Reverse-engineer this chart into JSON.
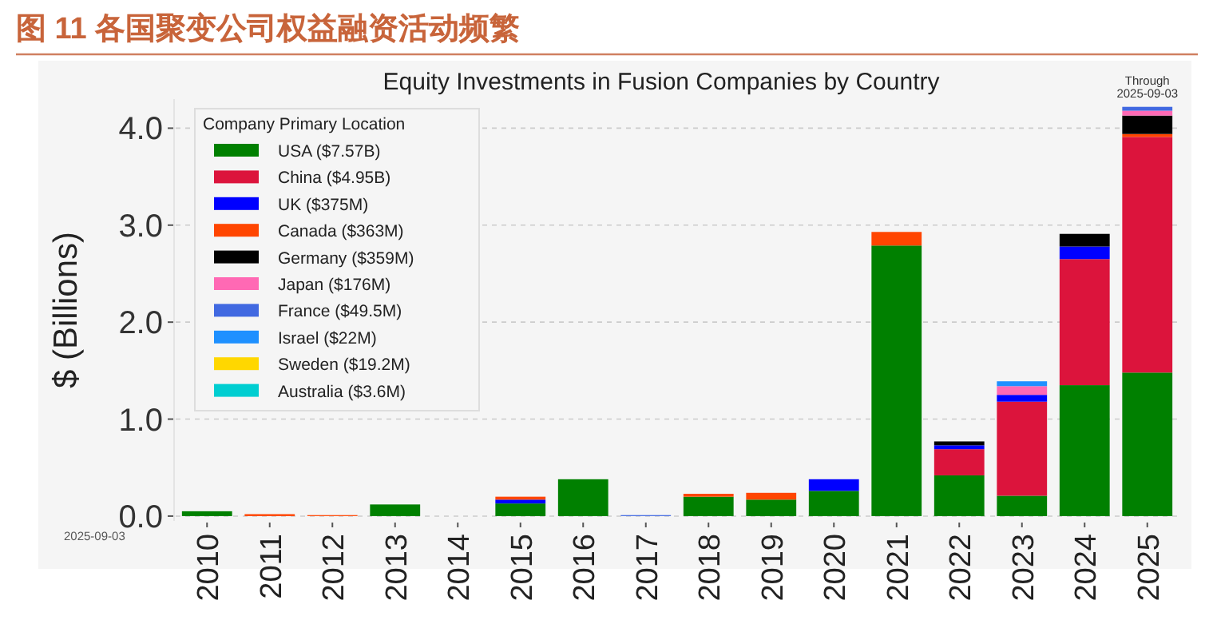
{
  "chart_data": {
    "type": "bar",
    "stacked": true,
    "title": "图 11 各国聚变公司权益融资活动频繁",
    "subtitle": "Equity Investments in Fusion Companies by Country",
    "ylabel": "$ (Billions)",
    "legend_title": "Company Primary Location",
    "categories": [
      "2010",
      "2011",
      "2012",
      "2013",
      "2014",
      "2015",
      "2016",
      "2017",
      "2018",
      "2019",
      "2020",
      "2021",
      "2022",
      "2023",
      "2024",
      "2025"
    ],
    "series": [
      {
        "name": "USA ($7.57B)",
        "color": "#008000",
        "values": [
          0.05,
          null,
          null,
          0.12,
          null,
          0.13,
          0.38,
          null,
          0.2,
          0.17,
          0.26,
          2.79,
          0.42,
          0.21,
          1.35,
          1.48
        ]
      },
      {
        "name": "China ($4.95B)",
        "color": "#dc143c",
        "values": [
          null,
          null,
          null,
          null,
          null,
          null,
          null,
          null,
          null,
          null,
          null,
          null,
          0.27,
          0.97,
          1.3,
          2.43
        ]
      },
      {
        "name": "UK ($375M)",
        "color": "#0000ff",
        "values": [
          null,
          null,
          null,
          null,
          null,
          0.04,
          null,
          null,
          null,
          null,
          0.12,
          null,
          0.04,
          0.07,
          0.13,
          null
        ]
      },
      {
        "name": "Canada ($363M)",
        "color": "#ff4500",
        "values": [
          null,
          0.02,
          0.01,
          null,
          null,
          0.03,
          null,
          null,
          0.03,
          0.07,
          null,
          0.14,
          null,
          null,
          null,
          0.03
        ]
      },
      {
        "name": "Germany ($359M)",
        "color": "#000000",
        "values": [
          null,
          null,
          null,
          null,
          null,
          null,
          null,
          null,
          null,
          null,
          null,
          null,
          0.04,
          null,
          0.13,
          0.19
        ]
      },
      {
        "name": "Japan ($176M)",
        "color": "#ff69b4",
        "values": [
          null,
          null,
          null,
          null,
          null,
          null,
          null,
          null,
          null,
          null,
          null,
          null,
          null,
          0.09,
          null,
          0.05
        ]
      },
      {
        "name": "France ($49.5M)",
        "color": "#4169e1",
        "values": [
          null,
          null,
          null,
          null,
          null,
          null,
          null,
          0.01,
          null,
          null,
          null,
          null,
          null,
          null,
          null,
          0.04
        ]
      },
      {
        "name": "Israel ($22M)",
        "color": "#1e90ff",
        "values": [
          null,
          null,
          null,
          null,
          null,
          null,
          null,
          null,
          null,
          null,
          null,
          null,
          null,
          0.05,
          null,
          null
        ]
      },
      {
        "name": "Sweden ($19.2M)",
        "color": "#ffd700",
        "values": [
          null,
          null,
          null,
          null,
          null,
          null,
          null,
          null,
          null,
          null,
          null,
          null,
          null,
          null,
          null,
          null
        ]
      },
      {
        "name": "Australia ($3.6M)",
        "color": "#00ced1",
        "values": [
          null,
          null,
          null,
          null,
          null,
          null,
          null,
          null,
          null,
          null,
          null,
          null,
          null,
          null,
          null,
          null
        ]
      }
    ],
    "ylim": [
      -0.05,
      4.3
    ],
    "yticks": [
      {
        "value": 0,
        "label": "0.0"
      },
      {
        "value": 1,
        "label": "1.0"
      },
      {
        "value": 2,
        "label": "2.0"
      },
      {
        "value": 3,
        "label": "3.0"
      },
      {
        "value": 4,
        "label": "4.0"
      }
    ],
    "grid": "y",
    "legend": "top left",
    "annotations": [
      {
        "text": "Through 2025-09-03",
        "x": "2025",
        "y": 4.22
      },
      "2025-09-03"
    ]
  }
}
